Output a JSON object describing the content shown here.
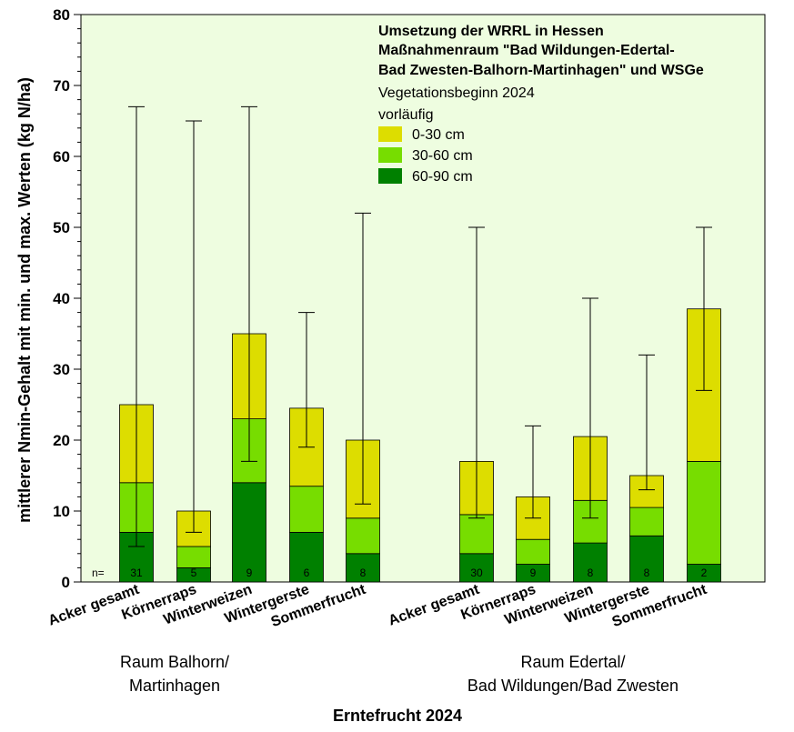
{
  "chart_data": {
    "type": "bar",
    "stacked": true,
    "title_lines": [
      "Umsetzung der WRRL in Hessen",
      "Maßnahmenraum \"Bad Wildungen-Edertal-",
      "Bad Zwesten-Balhorn-Martinhagen\" und WSGe"
    ],
    "subtitle_lines": [
      "Vegetationsbeginn 2024",
      "vorläufig"
    ],
    "xlabel": "Erntefrucht 2024",
    "ylabel": "mittlerer Nmin-Gehalt mit min. und max. Werten (kg N/ha)",
    "ylim": [
      0,
      80
    ],
    "yticks": [
      "0",
      "10",
      "20",
      "30",
      "40",
      "50",
      "60",
      "70",
      "80"
    ],
    "grid": false,
    "legend_position": "top-right",
    "background_color": "#eefde0",
    "n_prefix": "n=",
    "groups": [
      {
        "label_lines": [
          "Raum Balhorn/",
          "Martinhagen"
        ]
      },
      {
        "label_lines": [
          "Raum Edertal/",
          "Bad Wildungen/Bad Zwesten"
        ]
      }
    ],
    "categories": [
      "Acker gesamt",
      "Körnerraps",
      "Winterweizen",
      "Wintergerste",
      "Sommerfrucht",
      "Acker gesamt",
      "Körnerraps",
      "Winterweizen",
      "Wintergerste",
      "Sommerfrucht"
    ],
    "n": [
      "31",
      "5",
      "9",
      "6",
      "8",
      "30",
      "9",
      "8",
      "8",
      "2"
    ],
    "series": [
      {
        "name": "60-90 cm",
        "color": "#008000",
        "values": [
          7,
          2,
          14,
          7,
          4,
          4,
          2.5,
          5.5,
          6.5,
          2.5
        ]
      },
      {
        "name": "30-60 cm",
        "color": "#77dd00",
        "values": [
          7,
          3,
          9,
          6.5,
          5,
          5.5,
          3.5,
          6,
          4,
          14.5
        ]
      },
      {
        "name": "0-30 cm",
        "color": "#dddd00",
        "values": [
          11,
          5,
          12,
          11,
          11,
          7.5,
          6,
          9,
          4.5,
          21.5
        ]
      }
    ],
    "min": [
      5,
      7,
      17,
      19,
      11,
      9,
      9,
      9,
      13,
      27
    ],
    "max": [
      67,
      65,
      67,
      38,
      52,
      50,
      22,
      40,
      32,
      50
    ]
  }
}
